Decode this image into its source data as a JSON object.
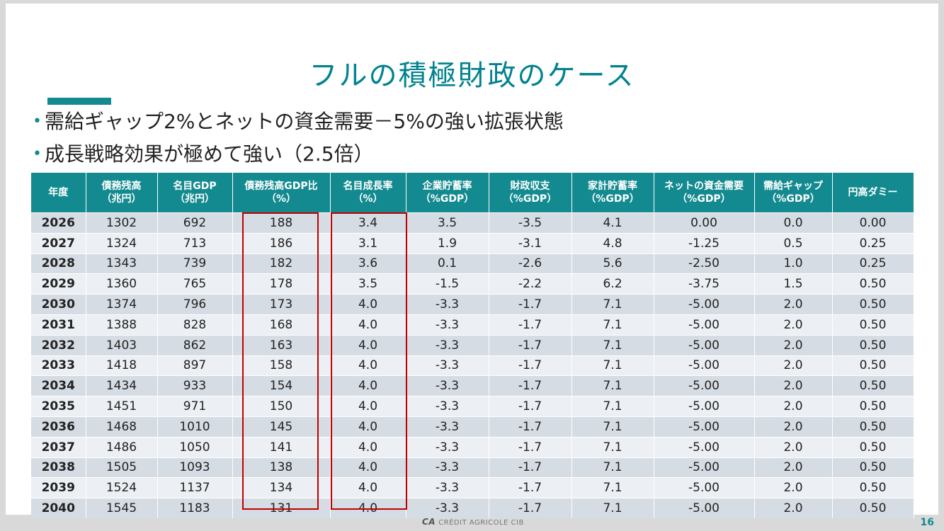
{
  "title": "フルの積極財政のケース",
  "bullets": [
    "需給ギャップ2%とネットの資金需要－5%の強い拡張状態",
    "成長戦略効果が極めて強い（2.5倍）"
  ],
  "table": {
    "headers": [
      [
        "年度",
        ""
      ],
      [
        "債務残高",
        "（兆円）"
      ],
      [
        "名目GDP",
        "（兆円）"
      ],
      [
        "債務残高GDP比",
        "（%）"
      ],
      [
        "名目成長率",
        "（%）"
      ],
      [
        "企業貯蓄率",
        "（%GDP）"
      ],
      [
        "財政収支",
        "（%GDP）"
      ],
      [
        "家計貯蓄率",
        "（%GDP）"
      ],
      [
        "ネットの資金需要",
        "（%GDP）"
      ],
      [
        "需給ギャップ",
        "（%GDP）"
      ],
      [
        "円高ダミー",
        ""
      ]
    ],
    "rows": [
      [
        "2026",
        "1302",
        "692",
        "188",
        "3.4",
        "3.5",
        "-3.5",
        "4.1",
        "0.00",
        "0.0",
        "0.00"
      ],
      [
        "2027",
        "1324",
        "713",
        "186",
        "3.1",
        "1.9",
        "-3.1",
        "4.8",
        "-1.25",
        "0.5",
        "0.25"
      ],
      [
        "2028",
        "1343",
        "739",
        "182",
        "3.6",
        "0.1",
        "-2.6",
        "5.6",
        "-2.50",
        "1.0",
        "0.25"
      ],
      [
        "2029",
        "1360",
        "765",
        "178",
        "3.5",
        "-1.5",
        "-2.2",
        "6.2",
        "-3.75",
        "1.5",
        "0.50"
      ],
      [
        "2030",
        "1374",
        "796",
        "173",
        "4.0",
        "-3.3",
        "-1.7",
        "7.1",
        "-5.00",
        "2.0",
        "0.50"
      ],
      [
        "2031",
        "1388",
        "828",
        "168",
        "4.0",
        "-3.3",
        "-1.7",
        "7.1",
        "-5.00",
        "2.0",
        "0.50"
      ],
      [
        "2032",
        "1403",
        "862",
        "163",
        "4.0",
        "-3.3",
        "-1.7",
        "7.1",
        "-5.00",
        "2.0",
        "0.50"
      ],
      [
        "2033",
        "1418",
        "897",
        "158",
        "4.0",
        "-3.3",
        "-1.7",
        "7.1",
        "-5.00",
        "2.0",
        "0.50"
      ],
      [
        "2034",
        "1434",
        "933",
        "154",
        "4.0",
        "-3.3",
        "-1.7",
        "7.1",
        "-5.00",
        "2.0",
        "0.50"
      ],
      [
        "2035",
        "1451",
        "971",
        "150",
        "4.0",
        "-3.3",
        "-1.7",
        "7.1",
        "-5.00",
        "2.0",
        "0.50"
      ],
      [
        "2036",
        "1468",
        "1010",
        "145",
        "4.0",
        "-3.3",
        "-1.7",
        "7.1",
        "-5.00",
        "2.0",
        "0.50"
      ],
      [
        "2037",
        "1486",
        "1050",
        "141",
        "4.0",
        "-3.3",
        "-1.7",
        "7.1",
        "-5.00",
        "2.0",
        "0.50"
      ],
      [
        "2038",
        "1505",
        "1093",
        "138",
        "4.0",
        "-3.3",
        "-1.7",
        "7.1",
        "-5.00",
        "2.0",
        "0.50"
      ],
      [
        "2039",
        "1524",
        "1137",
        "134",
        "4.0",
        "-3.3",
        "-1.7",
        "7.1",
        "-5.00",
        "2.0",
        "0.50"
      ],
      [
        "2040",
        "1545",
        "1183",
        "131",
        "4.0",
        "-3.3",
        "-1.7",
        "7.1",
        "-5.00",
        "2.0",
        "0.50"
      ]
    ]
  },
  "footer": {
    "logo_mark": "CA",
    "logo_text": "CRÉDIT AGRICOLE CIB",
    "page_number": "16"
  },
  "colors": {
    "accent": "#138a8f",
    "negative": "#e8191c",
    "highlight_box": "#c00000"
  }
}
